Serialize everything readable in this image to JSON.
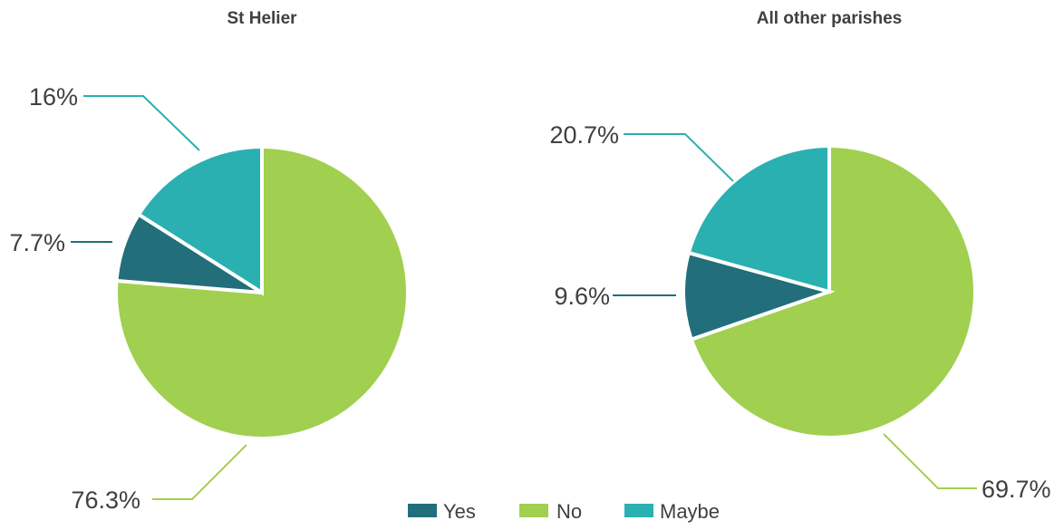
{
  "chart_data": [
    {
      "type": "pie",
      "title": "St Helier",
      "categories": [
        "Yes",
        "No",
        "Maybe"
      ],
      "values": [
        7.7,
        76.3,
        16
      ],
      "labels": [
        "7.7%",
        "76.3%",
        "16%"
      ]
    },
    {
      "type": "pie",
      "title": "All other parishes",
      "categories": [
        "Yes",
        "No",
        "Maybe"
      ],
      "values": [
        9.6,
        69.7,
        20.7
      ],
      "labels": [
        "9.6%",
        "69.7%",
        "20.7%"
      ]
    }
  ],
  "legend": {
    "placement": "bottom-center",
    "items": [
      {
        "label": "Yes",
        "color": "#226e7a"
      },
      {
        "label": "No",
        "color": "#a1cf50"
      },
      {
        "label": "Maybe",
        "color": "#2ab0b0"
      }
    ]
  },
  "colors": {
    "Yes": "#226e7a",
    "No": "#a1cf50",
    "Maybe": "#2ab0b0"
  }
}
